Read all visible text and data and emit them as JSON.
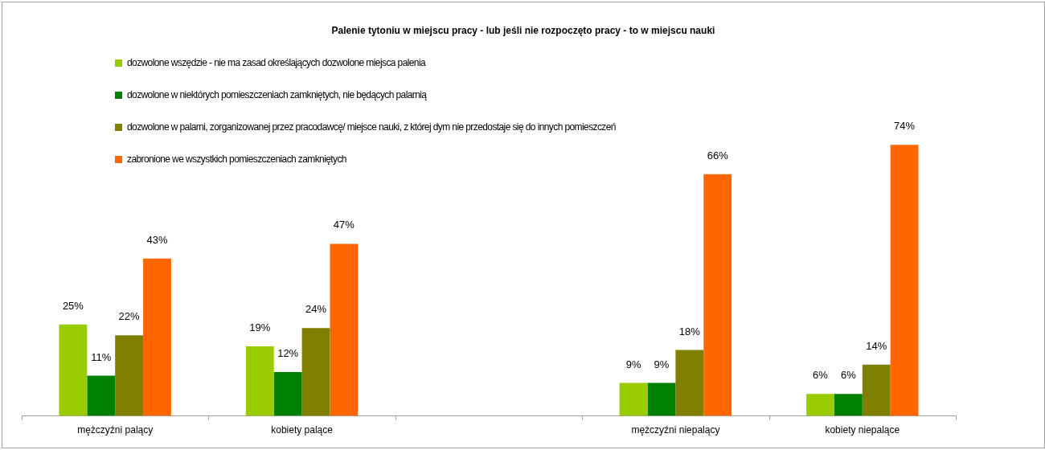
{
  "chart_data": {
    "type": "bar",
    "title": "Palenie tytoniu w miejscu pracy - lub jeśli nie rozpoczęto pracy - to w miejscu nauki",
    "categories": [
      "mężczyźni palący",
      "kobiety palące",
      null,
      "mężczyźni niepalący",
      "kobiety niepalące"
    ],
    "series": [
      {
        "name": "dozwolone wszędzie - nie ma zasad określających dozwolone miejsca palenia",
        "color": "#99cc00",
        "values": [
          25,
          19,
          null,
          9,
          6
        ],
        "value_labels": [
          "25%",
          "19%",
          null,
          "9%",
          "6%"
        ]
      },
      {
        "name": "dozwolone w niektórych pomieszczeniach zamkniętych, nie będących palarnią",
        "color": "#008000",
        "values": [
          11,
          12,
          null,
          9,
          6
        ],
        "value_labels": [
          "11%",
          "12%",
          null,
          "9%",
          "6%"
        ]
      },
      {
        "name": "dozwolone w palarni, zorganizowanej przez pracodawcę/ miejsce nauki, z której dym nie przedostaje się do innych pomieszczeń",
        "color": "#808000",
        "values": [
          22,
          24,
          null,
          18,
          14
        ],
        "value_labels": [
          "22%",
          "24%",
          null,
          "18%",
          "14%"
        ]
      },
      {
        "name": "zabronione we wszystkich pomieszczeniach zamkniętych",
        "color": "#ff6600",
        "values": [
          43,
          47,
          null,
          66,
          74
        ],
        "value_labels": [
          "43%",
          "47%",
          null,
          "66%",
          "74%"
        ]
      }
    ],
    "legend": "top left",
    "grid": false
  }
}
